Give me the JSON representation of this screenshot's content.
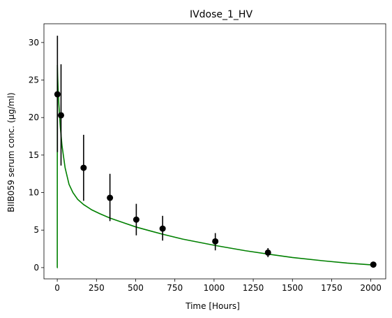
{
  "chart_data": {
    "type": "scatter",
    "title": "IVdose_1_HV",
    "xlabel": "Time [Hours]",
    "ylabel": "BIIB059 serum conc. (μg/ml)",
    "xlim": [
      -85,
      2095
    ],
    "ylim": [
      -1.5,
      32.5
    ],
    "xticks": [
      0,
      250,
      500,
      750,
      1000,
      1250,
      1500,
      1750,
      2000
    ],
    "yticks": [
      0,
      5,
      10,
      15,
      20,
      25,
      30
    ],
    "grid": false,
    "series": [
      {
        "kind": "errorbar",
        "color": "#000000",
        "points": [
          {
            "x": 1,
            "y": 23.1,
            "ylow": 15.4,
            "yhigh": 30.9
          },
          {
            "x": 24,
            "y": 20.3,
            "ylow": 13.6,
            "yhigh": 27.1
          },
          {
            "x": 168,
            "y": 13.3,
            "ylow": 8.9,
            "yhigh": 17.7
          },
          {
            "x": 336,
            "y": 9.3,
            "ylow": 6.2,
            "yhigh": 12.5
          },
          {
            "x": 504,
            "y": 6.4,
            "ylow": 4.3,
            "yhigh": 8.5
          },
          {
            "x": 672,
            "y": 5.2,
            "ylow": 3.6,
            "yhigh": 6.9
          },
          {
            "x": 1008,
            "y": 3.5,
            "ylow": 2.3,
            "yhigh": 4.6
          },
          {
            "x": 1344,
            "y": 2.0,
            "ylow": 1.4,
            "yhigh": 2.6
          },
          {
            "x": 2016,
            "y": 0.4,
            "ylow": 0.3,
            "yhigh": 0.5
          }
        ]
      },
      {
        "kind": "line",
        "color": "#008000",
        "x": [
          -2,
          0,
          0.5,
          2,
          5,
          10,
          20,
          30,
          50,
          75,
          100,
          130,
          168,
          220,
          270,
          336,
          420,
          504,
          600,
          672,
          800,
          1008,
          1200,
          1344,
          1500,
          1700,
          1850,
          2016
        ],
        "y": [
          0,
          0,
          27.0,
          25.8,
          24.0,
          21.8,
          18.6,
          16.3,
          13.3,
          11.1,
          10.0,
          9.1,
          8.4,
          7.7,
          7.2,
          6.6,
          6.0,
          5.4,
          4.85,
          4.45,
          3.8,
          2.95,
          2.25,
          1.8,
          1.35,
          0.9,
          0.6,
          0.35
        ]
      }
    ]
  }
}
